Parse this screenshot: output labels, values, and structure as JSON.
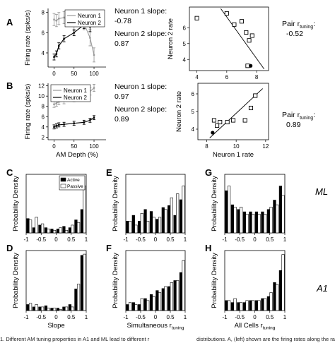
{
  "panel_letters": {
    "A": "A",
    "B": "B",
    "C": "C",
    "D": "D",
    "E": "E",
    "F": "F",
    "G": "G",
    "H": "H"
  },
  "row_labels": {
    "ml": "ML",
    "a1": "A1"
  },
  "annotations": {
    "a_n1_slope_label": "Neuron 1 slope:",
    "a_n1_slope_value": "-0.78",
    "a_n2_slope_label": "Neuron 2 slope:",
    "a_n2_slope_value": "0.87",
    "b_n1_slope_label": "Neuron 1 slope:",
    "b_n1_slope_value": "0.97",
    "b_n2_slope_label": "Neuron 2 slope:",
    "b_n2_slope_value": "0.89",
    "a_pair_label": "Pair r",
    "a_pair_sub": "tuning",
    "a_pair_colon": ":",
    "a_pair_value": "-0.52",
    "b_pair_label": "Pair r",
    "b_pair_sub": "tuning",
    "b_pair_colon": ":",
    "b_pair_value": "0.89"
  },
  "caption": {
    "left": "1. Different AM tuning properties in A1 and ML lead to different r",
    "right": "distributions. A, (left) shown are the firing rates along the range of tested AM d"
  },
  "colors": {
    "n1": "#9a9a9a",
    "n2": "#000000",
    "active": "#000000",
    "passive": "#ffffff"
  },
  "chart_data": [
    {
      "id": "A-left",
      "type": "line",
      "ylabel": "Firing rate (spks/s)",
      "xlabel": "",
      "x_ticks": [
        0,
        50,
        100
      ],
      "y_ticks": [
        4,
        6,
        8
      ],
      "xlim": [
        -15,
        130
      ],
      "ylim": [
        2.6,
        8.4
      ],
      "legend": "top-right",
      "series": [
        {
          "name": "Neuron 1",
          "color": "#9a9a9a",
          "x": [
            0,
            6,
            12,
            25,
            50,
            75,
            90,
            100
          ],
          "y": [
            7.3,
            7.2,
            7.4,
            7.5,
            6.8,
            6.9,
            5.5,
            3.8
          ],
          "err": [
            0.6,
            0.6,
            0.6,
            0.6,
            0.6,
            0.6,
            0.8,
            0.7
          ]
        },
        {
          "name": "Neuron 2",
          "color": "#000000",
          "x": [
            0,
            6,
            12,
            25,
            50,
            75,
            90,
            100
          ],
          "y": [
            3.6,
            3.9,
            4.7,
            5.4,
            6.0,
            6.8,
            6.6,
            7.0
          ],
          "err": [
            0.3,
            0.3,
            0.3,
            0.3,
            0.3,
            0.4,
            0.5,
            0.4
          ]
        }
      ]
    },
    {
      "id": "A-right",
      "type": "scatter",
      "xlabel": "",
      "ylabel": "Neuron 2 rate",
      "x_ticks": [
        4,
        6,
        8
      ],
      "y_ticks": [
        4,
        5,
        6
      ],
      "xlim": [
        3.5,
        8.8
      ],
      "ylim": [
        3.3,
        7.3
      ],
      "points_x": [
        4.0,
        6.0,
        6.5,
        7.0,
        7.3,
        7.5,
        7.7,
        7.4,
        7.6
      ],
      "points_y": [
        6.6,
        6.9,
        6.2,
        6.4,
        5.7,
        5.2,
        5.5,
        3.6,
        3.6
      ],
      "filled_index": 8,
      "fit_line": [
        [
          5.6,
          7.2
        ],
        [
          8.5,
          3.4
        ]
      ]
    },
    {
      "id": "B-left",
      "type": "line",
      "ylabel": "Firing rate (spks/s)",
      "xlabel": "AM Depth (%)",
      "x_ticks": [
        0,
        50,
        100
      ],
      "y_ticks": [
        2,
        4,
        6,
        8,
        10,
        12
      ],
      "xlim": [
        -15,
        130
      ],
      "ylim": [
        1.5,
        12.5
      ],
      "legend": "top-left",
      "series": [
        {
          "name": "Neuron 1",
          "color": "#9a9a9a",
          "x": [
            0,
            6,
            12,
            25,
            50,
            75,
            90,
            100
          ],
          "y": [
            8.4,
            8.6,
            8.9,
            9.1,
            9.5,
            10.2,
            10.9,
            11.6
          ],
          "err": [
            0.6,
            0.6,
            0.6,
            0.6,
            0.6,
            0.6,
            0.7,
            0.7
          ]
        },
        {
          "name": "Neuron 2",
          "color": "#000000",
          "x": [
            0,
            6,
            12,
            25,
            50,
            75,
            90,
            100
          ],
          "y": [
            4.0,
            4.2,
            4.4,
            4.5,
            4.7,
            4.9,
            5.3,
            5.8
          ],
          "err": [
            0.4,
            0.4,
            0.4,
            0.4,
            0.4,
            0.4,
            0.4,
            0.4
          ]
        }
      ]
    },
    {
      "id": "B-right",
      "type": "scatter",
      "xlabel": "Neuron 1 rate",
      "ylabel": "Neuron 2 rate",
      "x_ticks": [
        8,
        10,
        12
      ],
      "y_ticks": [
        4,
        5,
        6
      ],
      "xlim": [
        7.4,
        12.2
      ],
      "ylim": [
        3.4,
        6.6
      ],
      "points_x": [
        8.5,
        8.9,
        9.4,
        9.8,
        10.6,
        11.3,
        11.0,
        8.7,
        8.4
      ],
      "points_y": [
        4.5,
        4.4,
        4.4,
        4.5,
        4.5,
        5.9,
        5.2,
        4.2,
        3.8
      ],
      "filled_index": 8,
      "fit_line": [
        [
          8.2,
          3.5
        ],
        [
          11.8,
          6.3
        ]
      ]
    },
    {
      "id": "C",
      "type": "bar",
      "ylabel": "Probability Density",
      "xlabel": "",
      "legend": [
        "Active",
        "Passive"
      ],
      "x_ticks": [
        -1,
        -0.5,
        0,
        0.5,
        1
      ],
      "x_tick_labels": [
        "-1",
        "-0.5",
        "0",
        "0.5",
        "1"
      ],
      "xlim": [
        -1,
        1
      ],
      "ylim": [
        0,
        0.45
      ],
      "bin_centers": [
        -0.9,
        -0.7,
        -0.5,
        -0.3,
        -0.1,
        0.1,
        0.3,
        0.5,
        0.7,
        0.9
      ],
      "active": [
        0.11,
        0.04,
        0.06,
        0.04,
        0.03,
        0.03,
        0.05,
        0.04,
        0.1,
        0.18
      ],
      "passive": [
        0.1,
        0.12,
        0.07,
        0.03,
        0.02,
        0.04,
        0.02,
        0.06,
        0.08,
        0.36
      ]
    },
    {
      "id": "D",
      "type": "bar",
      "ylabel": "Probability Density",
      "xlabel": "Slope",
      "x_ticks": [
        -1,
        -0.5,
        0,
        0.5,
        1
      ],
      "x_tick_labels": [
        "-1",
        "-0.5",
        "0",
        "0.5",
        "1"
      ],
      "xlim": [
        -1,
        1
      ],
      "ylim": [
        0,
        0.5
      ],
      "bin_centers": [
        -0.9,
        -0.7,
        -0.5,
        -0.3,
        -0.1,
        0.1,
        0.3,
        0.5,
        0.7,
        0.9
      ],
      "active": [
        0.05,
        0.03,
        0.03,
        0.04,
        0.02,
        0.02,
        0.03,
        0.05,
        0.18,
        0.46
      ],
      "passive": [
        0.06,
        0.05,
        0.03,
        0.02,
        0.02,
        0.01,
        0.03,
        0.03,
        0.22,
        0.47
      ]
    },
    {
      "id": "E",
      "type": "bar",
      "ylabel": "Probability Density",
      "xlabel": "",
      "x_ticks": [
        -1,
        -0.5,
        0,
        0.5,
        1
      ],
      "x_tick_labels": [
        "-1",
        "-0.5",
        "0",
        "0.5",
        "1"
      ],
      "xlim": [
        -1,
        1
      ],
      "ylim": [
        0,
        0.3
      ],
      "bin_centers": [
        -0.9,
        -0.7,
        -0.5,
        -0.3,
        -0.1,
        0.1,
        0.3,
        0.5,
        0.7,
        0.9
      ],
      "active": [
        0.06,
        0.09,
        0.06,
        0.12,
        0.11,
        0.07,
        0.13,
        0.14,
        0.09,
        0.17
      ],
      "passive": [
        0.06,
        0.04,
        0.1,
        0.06,
        0.08,
        0.08,
        0.12,
        0.18,
        0.2,
        0.24
      ]
    },
    {
      "id": "F",
      "type": "bar",
      "ylabel": "Probability Density",
      "xlabel": "Simultaneous r",
      "xlabel_sub": "tuning",
      "x_ticks": [
        -1,
        -0.5,
        0,
        0.5,
        1
      ],
      "x_tick_labels": [
        "-1",
        "-0.5",
        "0",
        "0.5",
        "1"
      ],
      "xlim": [
        -1,
        1
      ],
      "ylim": [
        0,
        0.3
      ],
      "bin_centers": [
        -0.9,
        -0.7,
        -0.5,
        -0.3,
        -0.1,
        0.1,
        0.3,
        0.5,
        0.7,
        0.9
      ],
      "active": [
        0.03,
        0.04,
        0.03,
        0.06,
        0.08,
        0.1,
        0.11,
        0.12,
        0.15,
        0.19
      ],
      "passive": [
        0.04,
        0.03,
        0.06,
        0.05,
        0.07,
        0.09,
        0.12,
        0.14,
        0.15,
        0.25
      ]
    },
    {
      "id": "G",
      "type": "bar",
      "ylabel": "Probability Density",
      "xlabel": "",
      "x_ticks": [
        -1,
        -0.5,
        0,
        0.5,
        1
      ],
      "x_tick_labels": [
        "-1",
        "-0.5",
        "0",
        "0.5",
        "1"
      ],
      "xlim": [
        -1,
        1
      ],
      "ylim": [
        0,
        0.25
      ],
      "bin_centers": [
        -0.9,
        -0.7,
        -0.5,
        -0.3,
        -0.1,
        0.1,
        0.3,
        0.5,
        0.7,
        0.9
      ],
      "active": [
        0.18,
        0.12,
        0.1,
        0.09,
        0.09,
        0.09,
        0.09,
        0.1,
        0.14,
        0.2
      ],
      "passive": [
        0.2,
        0.11,
        0.11,
        0.08,
        0.08,
        0.08,
        0.08,
        0.11,
        0.12,
        0.16
      ]
    },
    {
      "id": "H",
      "type": "bar",
      "ylabel": "Probability Density",
      "xlabel": "All Cells r",
      "xlabel_sub": "tuning",
      "x_ticks": [
        -1,
        -0.5,
        0,
        0.5,
        1
      ],
      "x_tick_labels": [
        "-1",
        "-0.5",
        "0",
        "0.5",
        "1"
      ],
      "xlim": [
        -1,
        1
      ],
      "ylim": [
        0,
        0.3
      ],
      "bin_centers": [
        -0.9,
        -0.7,
        -0.5,
        -0.3,
        -0.1,
        0.1,
        0.3,
        0.5,
        0.7,
        0.9
      ],
      "active": [
        0.05,
        0.04,
        0.04,
        0.04,
        0.05,
        0.05,
        0.06,
        0.07,
        0.14,
        0.2
      ],
      "passive": [
        0.05,
        0.06,
        0.04,
        0.05,
        0.05,
        0.05,
        0.06,
        0.09,
        0.13,
        0.28
      ]
    }
  ]
}
